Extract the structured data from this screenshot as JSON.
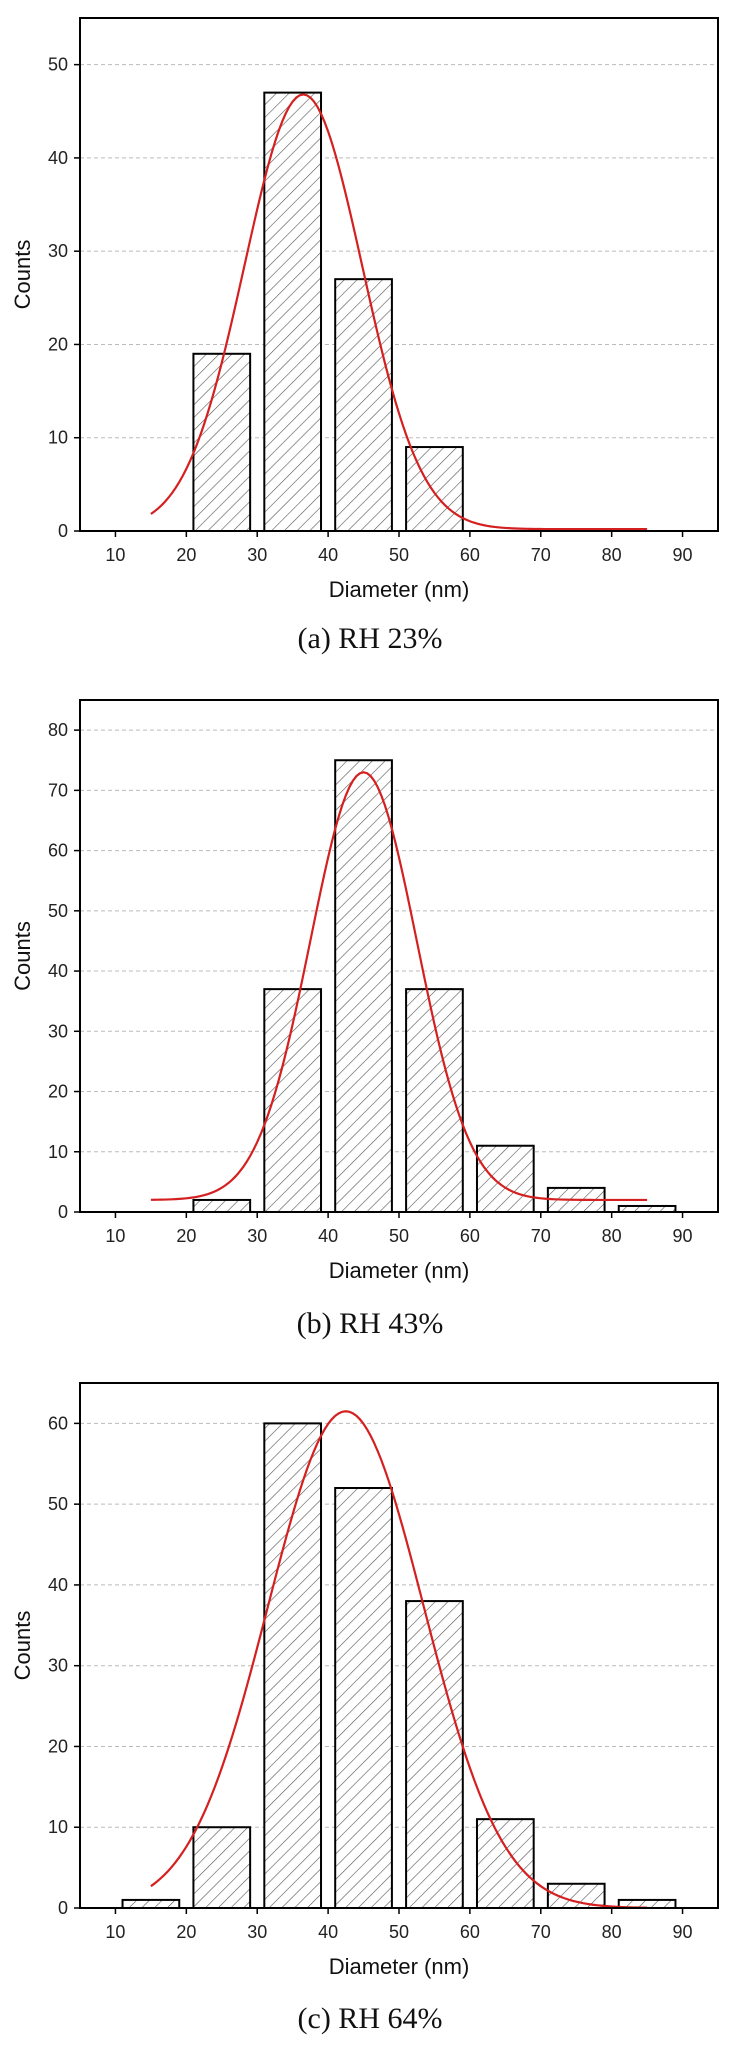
{
  "chart_data": [
    {
      "type": "bar",
      "caption": "(a) RH 23%",
      "xlabel": "Diameter (nm)",
      "ylabel": "Counts",
      "xlim": [
        5,
        95
      ],
      "ylim": [
        0,
        55
      ],
      "xticks": [
        10,
        20,
        30,
        40,
        50,
        60,
        70,
        80,
        90
      ],
      "yticks": [
        0,
        10,
        20,
        30,
        40,
        50
      ],
      "grid": "horizontal-dashed",
      "bars": [
        {
          "x0": 21,
          "x1": 29,
          "value": 19
        },
        {
          "x0": 31,
          "x1": 39,
          "value": 47
        },
        {
          "x0": 41,
          "x1": 49,
          "value": 27
        },
        {
          "x0": 51,
          "x1": 59,
          "value": 9
        }
      ],
      "fit": {
        "curve": "gaussian",
        "peak": 46.8,
        "mean": 36.5,
        "sigma": 8.3,
        "baseline": 0.2,
        "x_range": [
          15,
          85
        ]
      }
    },
    {
      "type": "bar",
      "caption": "(b) RH 43%",
      "xlabel": "Diameter (nm)",
      "ylabel": "Counts",
      "xlim": [
        5,
        95
      ],
      "ylim": [
        0,
        85
      ],
      "xticks": [
        10,
        20,
        30,
        40,
        50,
        60,
        70,
        80,
        90
      ],
      "yticks": [
        0,
        10,
        20,
        30,
        40,
        50,
        60,
        70,
        80
      ],
      "grid": "horizontal-dashed",
      "bars": [
        {
          "x0": 21,
          "x1": 29,
          "value": 2
        },
        {
          "x0": 31,
          "x1": 39,
          "value": 37
        },
        {
          "x0": 41,
          "x1": 49,
          "value": 75
        },
        {
          "x0": 51,
          "x1": 59,
          "value": 37
        },
        {
          "x0": 61,
          "x1": 69,
          "value": 11
        },
        {
          "x0": 71,
          "x1": 79,
          "value": 4
        },
        {
          "x0": 81,
          "x1": 89,
          "value": 1
        }
      ],
      "fit": {
        "curve": "gaussian",
        "peak": 73,
        "mean": 45,
        "sigma": 7.5,
        "baseline": 2,
        "x_range": [
          15,
          85
        ]
      }
    },
    {
      "type": "bar",
      "caption": "(c) RH 64%",
      "xlabel": "Diameter (nm)",
      "ylabel": "Counts",
      "xlim": [
        5,
        95
      ],
      "ylim": [
        0,
        65
      ],
      "xticks": [
        10,
        20,
        30,
        40,
        50,
        60,
        70,
        80,
        90
      ],
      "yticks": [
        0,
        10,
        20,
        30,
        40,
        50,
        60
      ],
      "grid": "horizontal-dashed",
      "bars": [
        {
          "x0": 11,
          "x1": 19,
          "value": 1
        },
        {
          "x0": 21,
          "x1": 29,
          "value": 10
        },
        {
          "x0": 31,
          "x1": 39,
          "value": 60
        },
        {
          "x0": 41,
          "x1": 49,
          "value": 52
        },
        {
          "x0": 51,
          "x1": 59,
          "value": 38
        },
        {
          "x0": 61,
          "x1": 69,
          "value": 11
        },
        {
          "x0": 71,
          "x1": 79,
          "value": 3
        },
        {
          "x0": 81,
          "x1": 89,
          "value": 1
        }
      ],
      "fit": {
        "curve": "gaussian",
        "peak": 61.5,
        "mean": 42.5,
        "sigma": 11,
        "baseline": 0,
        "x_range": [
          15,
          85
        ]
      }
    }
  ],
  "colors": {
    "bar_fill": "#ffffff",
    "bar_stroke": "#000000",
    "hatch": "#555555",
    "fit_curve": "#d42020",
    "grid": "#bbbbbb",
    "frame": "#000000"
  }
}
